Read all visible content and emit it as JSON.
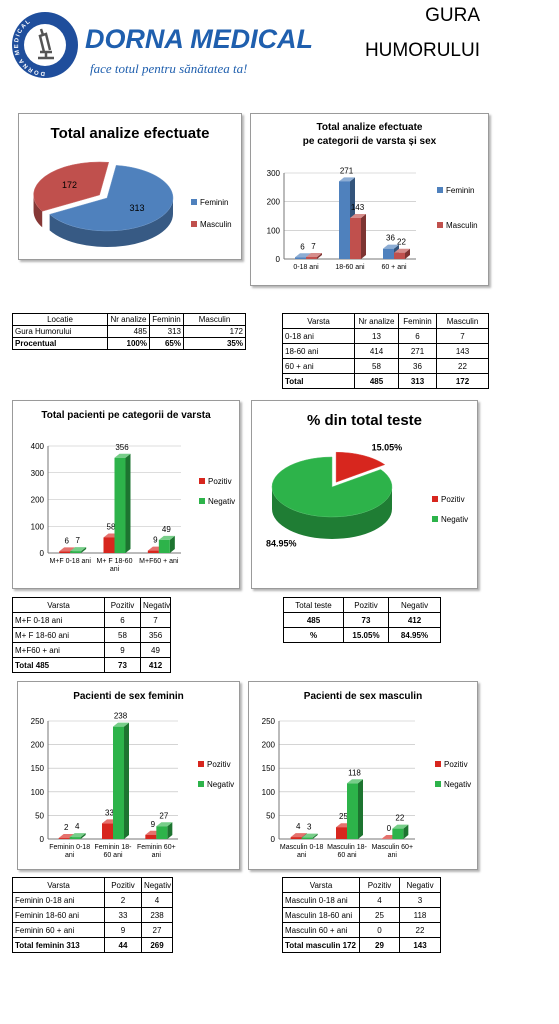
{
  "header": {
    "brand": "DORNA MEDICAL",
    "logo_ring": "DORNA MEDICAL",
    "tagline": "face totul pentru sănătatea ta!",
    "location": [
      "GURA",
      "HUMORULUI"
    ]
  },
  "chart_data": [
    {
      "type": "pie",
      "title": "Total analize efectuate",
      "categories": [
        "Feminin",
        "Masculin"
      ],
      "values": [
        313,
        172
      ],
      "colors": [
        "#4f81bd",
        "#c0504d"
      ],
      "legend": "right"
    },
    {
      "type": "bar",
      "title": "Total analize efectuate",
      "subtitle": "pe categorii de varsta și sex",
      "categories": [
        "0-18 ani",
        "18-60 ani",
        "60 + ani"
      ],
      "series": [
        {
          "name": "Feminin",
          "color": "#4f81bd",
          "values": [
            6,
            271,
            36
          ]
        },
        {
          "name": "Masculin",
          "color": "#c0504d",
          "values": [
            7,
            143,
            22
          ]
        }
      ],
      "ylim": [
        0,
        300
      ],
      "yticks": [
        0,
        100,
        200,
        300
      ],
      "grid": true,
      "legend": "right"
    },
    {
      "type": "bar",
      "title": "Total pacienti pe categorii de varsta",
      "categories": [
        "M+F 0-18 ani",
        "M+ F 18-60 ani",
        "M+F60 + ani"
      ],
      "series": [
        {
          "name": "Pozitiv",
          "color": "#d7261e",
          "values": [
            6,
            58,
            9
          ]
        },
        {
          "name": "Negativ",
          "color": "#2db34a",
          "values": [
            7,
            356,
            49
          ]
        }
      ],
      "ylim": [
        0,
        400
      ],
      "yticks": [
        0,
        100,
        200,
        300,
        400
      ],
      "grid": true,
      "legend": "right"
    },
    {
      "type": "pie",
      "title": "% din total teste",
      "categories": [
        "Pozitiv",
        "Negativ"
      ],
      "values": [
        15.05,
        84.95
      ],
      "value_labels": [
        "15.05%",
        "84.95%"
      ],
      "colors": [
        "#d7261e",
        "#2db34a"
      ],
      "legend": "right"
    },
    {
      "type": "bar",
      "title": "Pacienti de sex feminin",
      "categories": [
        "Feminin 0-18 ani",
        "Feminin 18-60 ani",
        "Feminin 60+ ani"
      ],
      "series": [
        {
          "name": "Pozitiv",
          "color": "#d7261e",
          "values": [
            2,
            33,
            9
          ]
        },
        {
          "name": "Negativ",
          "color": "#2db34a",
          "values": [
            4,
            238,
            27
          ]
        }
      ],
      "ylim": [
        0,
        250
      ],
      "yticks": [
        0,
        50,
        100,
        150,
        200,
        250
      ],
      "grid": true,
      "legend": "right"
    },
    {
      "type": "bar",
      "title": "Pacienti de sex masculin",
      "categories": [
        "Masculin 0-18 ani",
        "Masculin 18-60 ani",
        "Masculin 60+ ani"
      ],
      "series": [
        {
          "name": "Pozitiv",
          "color": "#d7261e",
          "values": [
            4,
            25,
            0
          ]
        },
        {
          "name": "Negativ",
          "color": "#2db34a",
          "values": [
            3,
            118,
            22
          ]
        }
      ],
      "ylim": [
        0,
        250
      ],
      "yticks": [
        0,
        50,
        100,
        150,
        200,
        250
      ],
      "grid": true,
      "legend": "right"
    }
  ],
  "tables": [
    {
      "columns": [
        "Locatie",
        "Nr analize",
        "Feminin",
        "Masculin"
      ],
      "rows": [
        [
          "Gura Humorului",
          485,
          313,
          172
        ],
        [
          "Procentual",
          "100%",
          "65%",
          "35%"
        ]
      ]
    },
    {
      "columns": [
        "Varsta",
        "Nr analize",
        "Feminin",
        "Masculin"
      ],
      "rows": [
        [
          "0-18 ani",
          13,
          6,
          7
        ],
        [
          "18-60 ani",
          414,
          271,
          143
        ],
        [
          "60 + ani",
          58,
          36,
          22
        ],
        [
          "Total",
          485,
          313,
          172
        ]
      ]
    },
    {
      "columns": [
        "Varsta",
        "Pozitiv",
        "Negativ"
      ],
      "rows": [
        [
          "M+F 0-18 ani",
          6,
          7
        ],
        [
          "M+ F 18-60 ani",
          58,
          356
        ],
        [
          "M+F60 + ani",
          9,
          49
        ],
        [
          "Total 485",
          73,
          412
        ]
      ]
    },
    {
      "columns": [
        "Total teste",
        "Pozitiv",
        "Negativ"
      ],
      "rows": [
        [
          485,
          73,
          412
        ],
        [
          "%",
          "15.05%",
          "84.95%"
        ]
      ]
    },
    {
      "columns": [
        "Varsta",
        "Pozitiv",
        "Negativ"
      ],
      "rows": [
        [
          "Feminin 0-18 ani",
          2,
          4
        ],
        [
          "Feminin 18-60 ani",
          33,
          238
        ],
        [
          "Feminin 60 + ani",
          9,
          27
        ],
        [
          "Total feminin 313",
          44,
          269
        ]
      ]
    },
    {
      "columns": [
        "Varsta",
        "Pozitiv",
        "Negativ"
      ],
      "rows": [
        [
          "Masculin 0-18 ani",
          4,
          3
        ],
        [
          "Masculin 18-60 ani",
          25,
          118
        ],
        [
          "Masculin 60 + ani",
          0,
          22
        ],
        [
          "Total masculin 172",
          29,
          143
        ]
      ]
    }
  ]
}
